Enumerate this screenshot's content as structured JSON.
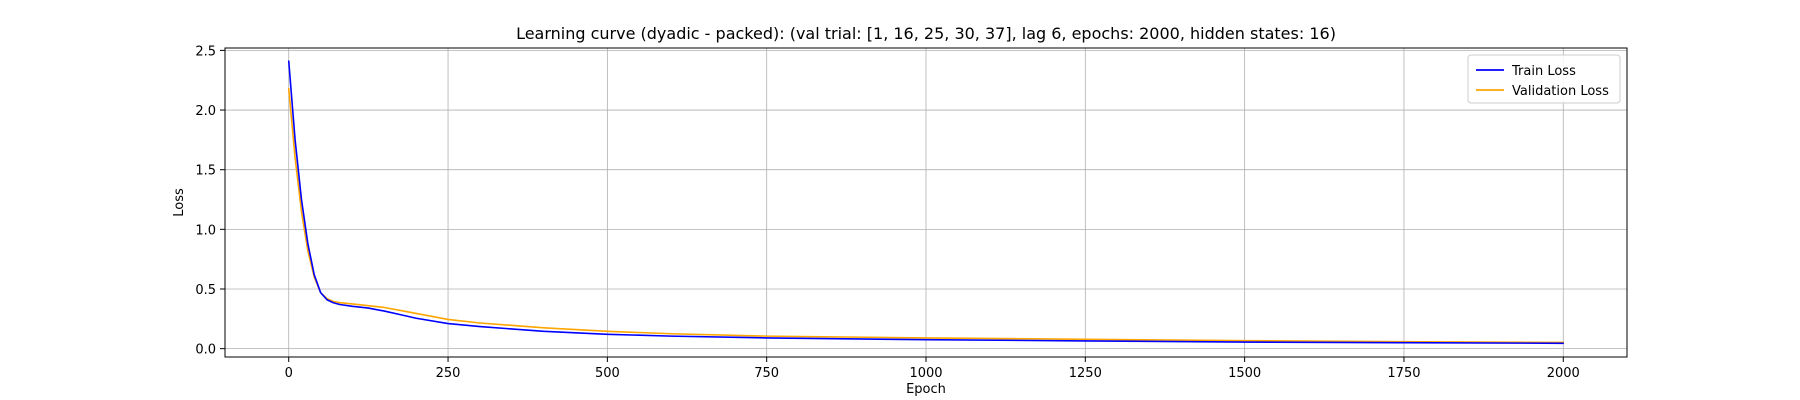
{
  "chart_data": {
    "type": "line",
    "title": "Learning curve (dyadic - packed): (val trial: [1, 16, 25, 30, 37], lag 6, epochs: 2000, hidden states: 16)",
    "xlabel": "Epoch",
    "ylabel": "Loss",
    "xlim": [
      -100,
      2100
    ],
    "ylim": [
      -0.07,
      2.52
    ],
    "xticks": [
      0,
      250,
      500,
      750,
      1000,
      1250,
      1500,
      1750,
      2000
    ],
    "xtick_labels": [
      "0",
      "250",
      "500",
      "750",
      "1000",
      "1250",
      "1500",
      "1750",
      "2000"
    ],
    "yticks": [
      0.0,
      0.5,
      1.0,
      1.5,
      2.0,
      2.5
    ],
    "ytick_labels": [
      "0.0",
      "0.5",
      "1.0",
      "1.5",
      "2.0",
      "2.5"
    ],
    "grid": true,
    "legend_position": "top-right",
    "series": [
      {
        "name": "Train Loss",
        "color": "#0000ff",
        "x": [
          0,
          10,
          20,
          30,
          40,
          50,
          60,
          70,
          80,
          100,
          125,
          150,
          175,
          200,
          250,
          300,
          400,
          500,
          600,
          750,
          1000,
          1250,
          1500,
          1750,
          2000
        ],
        "y": [
          2.41,
          1.75,
          1.25,
          0.88,
          0.62,
          0.47,
          0.41,
          0.385,
          0.37,
          0.355,
          0.34,
          0.315,
          0.285,
          0.255,
          0.21,
          0.185,
          0.145,
          0.12,
          0.105,
          0.09,
          0.075,
          0.065,
          0.055,
          0.05,
          0.045
        ]
      },
      {
        "name": "Validation Loss",
        "color": "#ffa500",
        "x": [
          0,
          10,
          20,
          30,
          40,
          50,
          60,
          70,
          80,
          100,
          125,
          150,
          175,
          200,
          250,
          300,
          400,
          500,
          600,
          750,
          1000,
          1250,
          1500,
          1750,
          2000
        ],
        "y": [
          2.18,
          1.6,
          1.15,
          0.82,
          0.6,
          0.47,
          0.42,
          0.395,
          0.385,
          0.375,
          0.36,
          0.345,
          0.32,
          0.295,
          0.245,
          0.215,
          0.175,
          0.145,
          0.125,
          0.105,
          0.09,
          0.078,
          0.067,
          0.058,
          0.052
        ]
      }
    ]
  }
}
